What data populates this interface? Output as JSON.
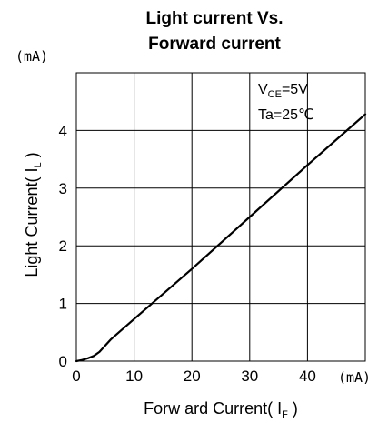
{
  "chart_data": {
    "type": "line",
    "title_line1": "Light current Vs.",
    "title_line2": "Forward current",
    "xlabel": {
      "main": "Forw ard Current( I",
      "sub": "F",
      "end": " )"
    },
    "ylabel": {
      "main": "Light Current( I",
      "sub": "L",
      "end": " )"
    },
    "x_unit": "(mA)",
    "y_unit": "(mA)",
    "xlim": [
      0,
      50
    ],
    "ylim": [
      0,
      5
    ],
    "x_ticks": [
      0,
      10,
      20,
      30,
      40
    ],
    "y_ticks": [
      0,
      1,
      2,
      3,
      4
    ],
    "grid": true,
    "annotations": {
      "vce": {
        "main": "V",
        "sub": "CE",
        "end": "=5V"
      },
      "ta": "Ta=25℃"
    },
    "series": [
      {
        "values": [
          [
            0,
            0
          ],
          [
            1,
            0.02
          ],
          [
            2,
            0.05
          ],
          [
            3,
            0.09
          ],
          [
            4,
            0.16
          ],
          [
            5,
            0.27
          ],
          [
            6,
            0.38
          ],
          [
            10,
            0.73
          ],
          [
            20,
            1.6
          ],
          [
            30,
            2.5
          ],
          [
            40,
            3.4
          ],
          [
            50,
            4.28
          ]
        ]
      }
    ]
  }
}
